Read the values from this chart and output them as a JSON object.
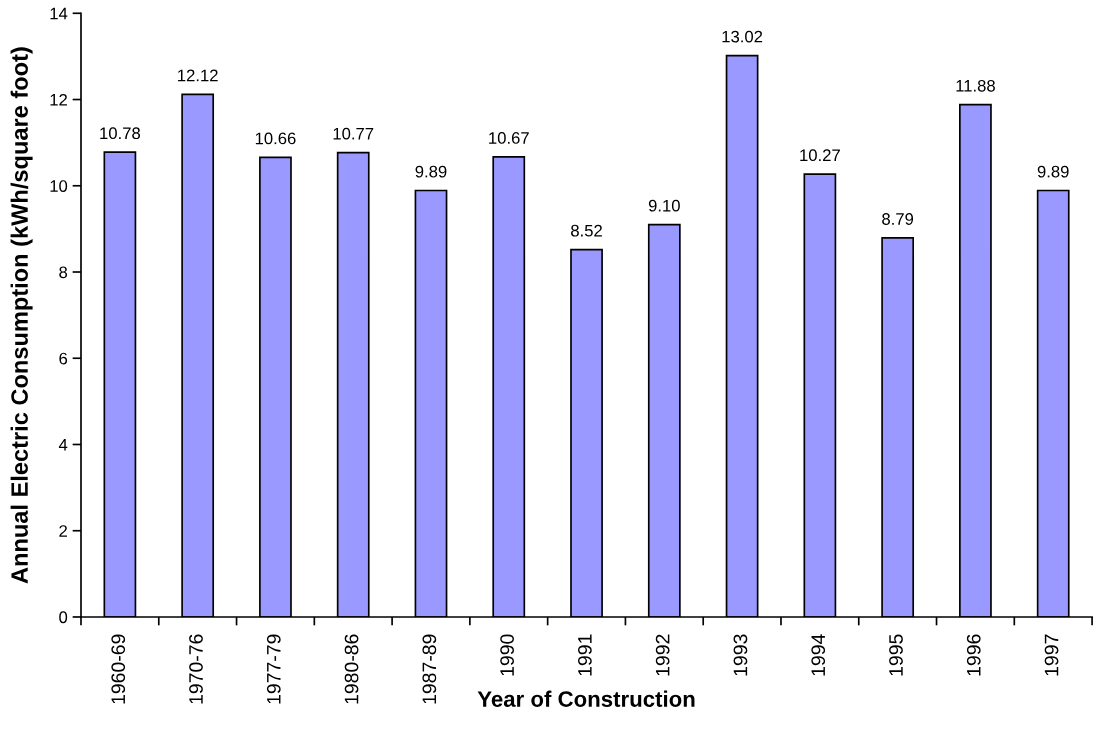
{
  "chart_data": {
    "type": "bar",
    "xlabel": "Year of Construction",
    "ylabel": "Annual Electric Consumption (kWh/square foot)",
    "categories": [
      "1960-69",
      "1970-76",
      "1977-79",
      "1980-86",
      "1987-89",
      "1990",
      "1991",
      "1992",
      "1993",
      "1994",
      "1995",
      "1996",
      "1997"
    ],
    "values": [
      10.78,
      12.12,
      10.66,
      10.77,
      9.89,
      10.67,
      8.52,
      9.1,
      13.02,
      10.27,
      8.79,
      11.88,
      9.89
    ],
    "value_labels": [
      "10.78",
      "12.12",
      "10.66",
      "10.77",
      "9.89",
      "10.67",
      "8.52",
      "9.10",
      "13.02",
      "10.27",
      "8.79",
      "11.88",
      "9.89"
    ],
    "color": "#9999ff",
    "ylim": [
      0,
      14
    ],
    "yticks": [
      0,
      2,
      4,
      6,
      8,
      10,
      12,
      14
    ],
    "grid": false,
    "legend": false
  }
}
